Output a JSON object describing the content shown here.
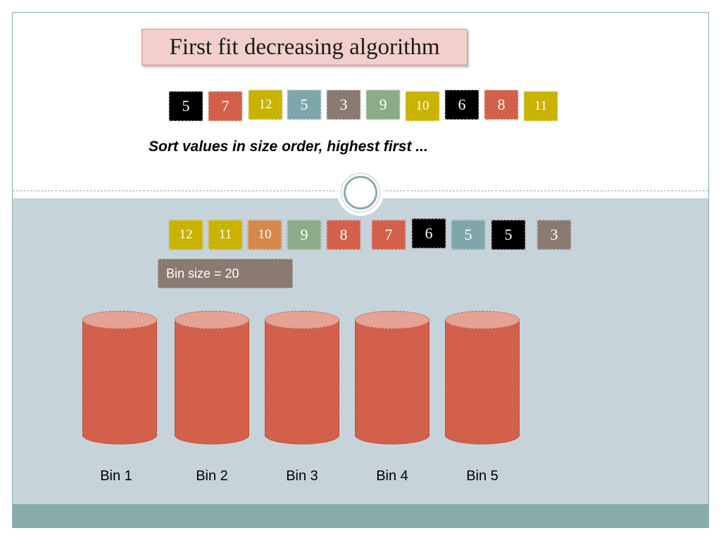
{
  "title": "First fit decreasing algorithm",
  "instruction": "Sort values in size order, highest first ...",
  "bin_size_label": "Bin size = 20",
  "colors": {
    "black": "#000000",
    "red": "#d2604a",
    "yellow": "#c9b200",
    "teal": "#7fa7ab",
    "taupe": "#8a7a72",
    "green": "#8aac86",
    "orange": "#d4894a"
  },
  "unsorted_items": [
    {
      "value": "5",
      "color": "#000000"
    },
    {
      "value": "7",
      "color": "#d2604a"
    },
    {
      "value": "12",
      "color": "#c9b200"
    },
    {
      "value": "5",
      "color": "#7fa7ab"
    },
    {
      "value": "3",
      "color": "#8a7a72"
    },
    {
      "value": "9",
      "color": "#8aac86"
    },
    {
      "value": "10",
      "color": "#c9b200"
    },
    {
      "value": "6",
      "color": "#000000"
    },
    {
      "value": "8",
      "color": "#d2604a"
    },
    {
      "value": "11",
      "color": "#c9b200"
    }
  ],
  "sorted_items": [
    {
      "value": "12",
      "color": "#c9b200"
    },
    {
      "value": "11",
      "color": "#c9b200"
    },
    {
      "value": "10",
      "color": "#d4894a"
    },
    {
      "value": "9",
      "color": "#8aac86"
    },
    {
      "value": "8",
      "color": "#d2604a"
    },
    {
      "value": "7",
      "color": "#d2604a"
    },
    {
      "value": "6",
      "color": "#000000"
    },
    {
      "value": "5",
      "color": "#7fa7ab"
    },
    {
      "value": "5",
      "color": "#000000"
    },
    {
      "value": "3",
      "color": "#8a7a72"
    }
  ],
  "bins": [
    {
      "label": "Bin 1"
    },
    {
      "label": "Bin 2"
    },
    {
      "label": "Bin 3"
    },
    {
      "label": "Bin 4"
    },
    {
      "label": "Bin 5"
    }
  ]
}
